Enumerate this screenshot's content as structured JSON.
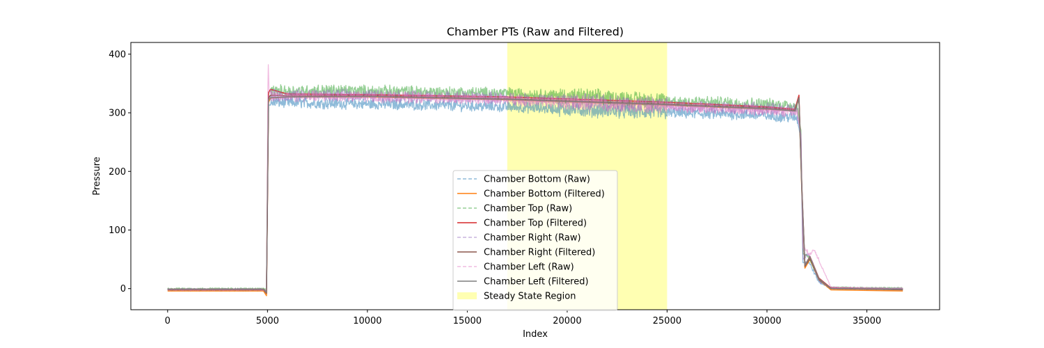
{
  "chart_data": {
    "type": "line",
    "title": "Chamber PTs (Raw and Filtered)",
    "xlabel": "Index",
    "ylabel": "Pressure",
    "xlim": [
      -1840,
      38640
    ],
    "ylim": [
      -36,
      420
    ],
    "x_ticks": [
      0,
      5000,
      10000,
      15000,
      20000,
      25000,
      30000,
      35000
    ],
    "y_ticks": [
      0,
      100,
      200,
      300,
      400
    ],
    "x_tick_labels": [
      "0",
      "5000",
      "10000",
      "15000",
      "20000",
      "25000",
      "30000",
      "35000"
    ],
    "y_tick_labels": [
      "0",
      "100",
      "200",
      "300",
      "400"
    ],
    "grid": false,
    "legend_position": "lower-center",
    "steady_state_region": {
      "label": "Steady State Region",
      "x_start": 17000,
      "x_end": 25000,
      "color": "#ffff00"
    },
    "series": [
      {
        "name": "Chamber Bottom (Raw)",
        "style": "dashed",
        "color": "#1f77b4",
        "kind": "raw",
        "x": [
          0,
          4800,
          4950,
          5050,
          5300,
          8000,
          12000,
          17000,
          21000,
          25000,
          29000,
          31500,
          31700,
          31800,
          32100,
          32600,
          33200,
          36800
        ],
        "y": [
          -3,
          -3,
          -10,
          312,
          318,
          316,
          314,
          310,
          305,
          300,
          297,
          292,
          255,
          45,
          45,
          12,
          0,
          -1
        ],
        "noise": 8
      },
      {
        "name": "Chamber Bottom (Filtered)",
        "style": "solid",
        "color": "#ff7f0e",
        "kind": "filtered",
        "x": [
          0,
          4800,
          4950,
          5050,
          5150,
          6000,
          10000,
          17000,
          25000,
          30000,
          31400,
          31600,
          31750,
          31900,
          32150,
          32600,
          33200,
          36800
        ],
        "y": [
          -4,
          -4,
          -12,
          318,
          325,
          327,
          327,
          322,
          313,
          306,
          303,
          324,
          160,
          35,
          50,
          15,
          -2,
          -4
        ]
      },
      {
        "name": "Chamber Top (Raw)",
        "style": "dashed",
        "color": "#2ca02c",
        "kind": "raw",
        "x": [
          0,
          4800,
          4950,
          5050,
          5300,
          8000,
          12000,
          17000,
          21000,
          25000,
          29000,
          31500,
          31700,
          31800,
          32100,
          32600,
          33200,
          36800
        ],
        "y": [
          0,
          0,
          -2,
          335,
          337,
          338,
          336,
          333,
          327,
          320,
          316,
          312,
          270,
          60,
          55,
          15,
          2,
          1
        ],
        "noise": 9
      },
      {
        "name": "Chamber Top (Filtered)",
        "style": "solid",
        "color": "#d62728",
        "kind": "filtered",
        "x": [
          0,
          4800,
          4950,
          5050,
          5150,
          6000,
          10000,
          17000,
          25000,
          30000,
          31400,
          31600,
          31750,
          31900,
          32150,
          32600,
          33200,
          36800
        ],
        "y": [
          -1,
          -1,
          -5,
          335,
          340,
          332,
          331,
          327,
          318,
          310,
          306,
          330,
          170,
          40,
          55,
          18,
          1,
          -1
        ]
      },
      {
        "name": "Chamber Right (Raw)",
        "style": "dashed",
        "color": "#9467bd",
        "kind": "raw",
        "x": [
          0,
          4800,
          4950,
          5050,
          5300,
          8000,
          12000,
          17000,
          21000,
          25000,
          29000,
          31500,
          31700,
          31800,
          32100,
          32600,
          33200,
          36800
        ],
        "y": [
          -1,
          -1,
          -6,
          328,
          330,
          330,
          328,
          325,
          318,
          313,
          308,
          305,
          262,
          50,
          60,
          14,
          1,
          0
        ],
        "noise": 9
      },
      {
        "name": "Chamber Right (Filtered)",
        "style": "solid",
        "color": "#8c564b",
        "kind": "filtered",
        "x": [
          0,
          4800,
          4950,
          5050,
          5150,
          6000,
          10000,
          17000,
          25000,
          30000,
          31400,
          31600,
          31750,
          31900,
          32150,
          32600,
          33200,
          36800
        ],
        "y": [
          -2,
          -2,
          -8,
          325,
          330,
          329,
          329,
          324,
          315,
          308,
          304,
          326,
          165,
          38,
          52,
          16,
          0,
          -2
        ]
      },
      {
        "name": "Chamber Left (Raw)",
        "style": "dashed",
        "color": "#e377c2",
        "kind": "raw",
        "x": [
          0,
          4800,
          4950,
          5030,
          5080,
          5300,
          8000,
          12000,
          17000,
          21000,
          25000,
          29000,
          31500,
          31700,
          31800,
          32100,
          32400,
          33200,
          36800
        ],
        "y": [
          -2,
          -2,
          -5,
          395,
          335,
          328,
          328,
          326,
          322,
          316,
          311,
          305,
          302,
          260,
          70,
          60,
          65,
          2,
          0
        ],
        "noise": 8
      },
      {
        "name": "Chamber Left (Filtered)",
        "style": "solid",
        "color": "#7f7f7f",
        "kind": "filtered",
        "x": [
          0,
          4800,
          4950,
          5050,
          5150,
          6000,
          10000,
          17000,
          25000,
          30000,
          31400,
          31600,
          31750,
          31900,
          32150,
          32600,
          33200,
          36800
        ],
        "y": [
          -1,
          -1,
          -6,
          322,
          326,
          327,
          328,
          323,
          314,
          307,
          303,
          325,
          168,
          40,
          54,
          17,
          0,
          -1
        ]
      }
    ]
  }
}
